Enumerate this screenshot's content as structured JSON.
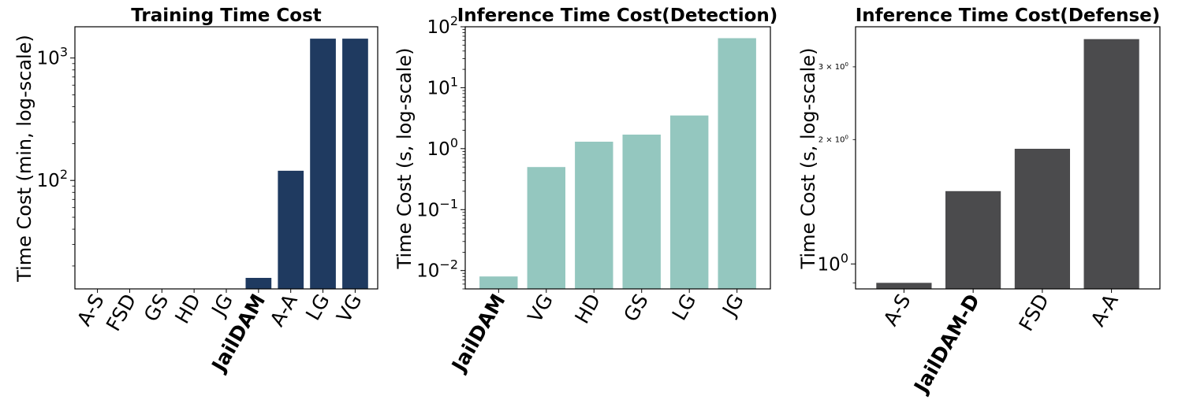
{
  "chart_data": [
    {
      "type": "bar",
      "title": "Training Time Cost",
      "ylabel": "Time Cost (min, log-scale)",
      "yscale": "log",
      "ylim": [
        13,
        1800
      ],
      "yticks": [
        {
          "value": 100,
          "base": "10",
          "exp": "2"
        },
        {
          "value": 1000,
          "base": "10",
          "exp": "3"
        }
      ],
      "yticks_small": [],
      "categories": [
        "A-S",
        "FSD",
        "GS",
        "HD",
        "JG",
        "JailDAM",
        "A-A",
        "LG",
        "VG"
      ],
      "values": [
        null,
        null,
        null,
        null,
        null,
        16,
        120,
        1440,
        1440
      ],
      "bar_color": "#1f3a60",
      "highlight": {
        "category": "JailDAM",
        "color": "#e05a78"
      }
    },
    {
      "type": "bar",
      "title": "Inference Time Cost(Detection)",
      "ylabel": "Time Cost (s, log-scale)",
      "yscale": "log",
      "ylim": [
        0.005,
        100
      ],
      "yticks": [
        {
          "value": 0.01,
          "base": "10",
          "exp": "−2"
        },
        {
          "value": 0.1,
          "base": "10",
          "exp": "−1"
        },
        {
          "value": 1,
          "base": "10",
          "exp": "0"
        },
        {
          "value": 10,
          "base": "10",
          "exp": "1"
        },
        {
          "value": 100,
          "base": "10",
          "exp": "2"
        }
      ],
      "yticks_small": [],
      "categories": [
        "JailDAM",
        "VG",
        "HD",
        "GS",
        "LG",
        "JG"
      ],
      "values": [
        0.008,
        0.5,
        1.3,
        1.7,
        3.5,
        65
      ],
      "bar_color": "#94c7bf",
      "highlight": {
        "category": "JailDAM",
        "color": "#e05a78"
      }
    },
    {
      "type": "bar",
      "title": "Inference Time Cost(Defense)",
      "ylabel": "Time Cost (s, log-scale)",
      "yscale": "log",
      "ylim": [
        0.87,
        3.75
      ],
      "yticks": [
        {
          "value": 1,
          "base": "10",
          "exp": "0"
        }
      ],
      "yticks_small": [
        {
          "value": 2,
          "label": "2 × 10",
          "exp": "0"
        },
        {
          "value": 3,
          "label": "3 × 10",
          "exp": "0"
        }
      ],
      "categories": [
        "A-S",
        "JailDAM-D",
        "FSD",
        "A-A"
      ],
      "values": [
        0.9,
        1.5,
        1.9,
        3.5
      ],
      "bar_color": "#4b4b4d",
      "highlight": {
        "category": "JailDAM-D",
        "color": "#e05a78"
      }
    }
  ]
}
